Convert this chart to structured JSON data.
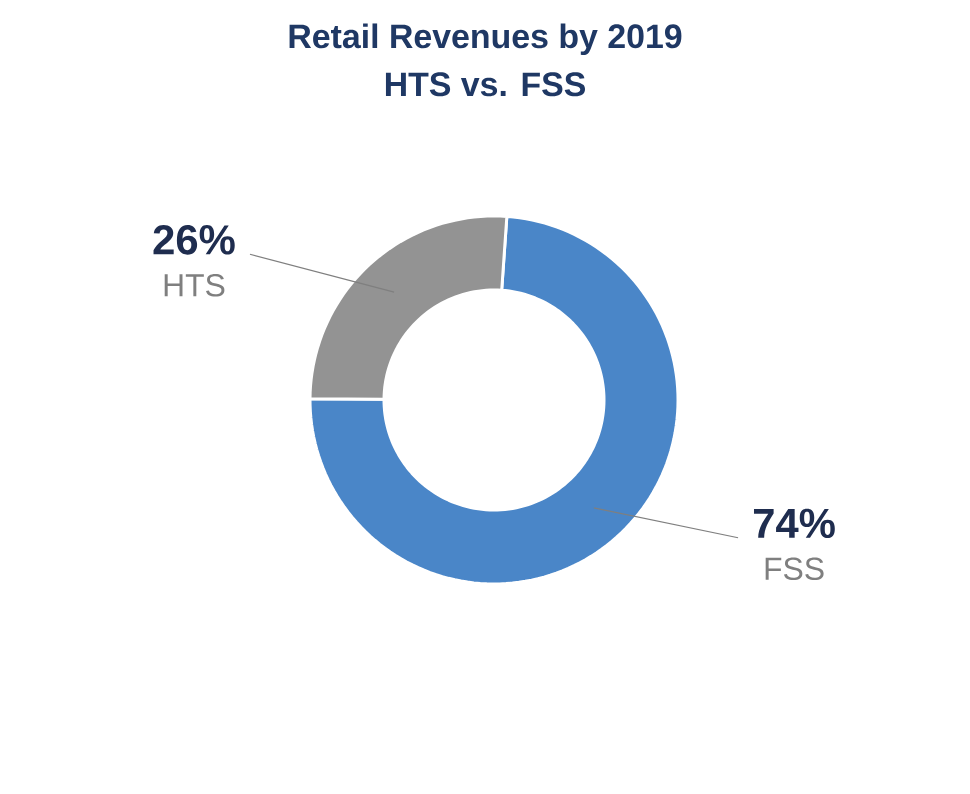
{
  "chart_data": {
    "type": "donut",
    "title": "Retail Revenues by 2019",
    "subtitle": "HTS vs. FSS",
    "categories": [
      "FSS",
      "HTS"
    ],
    "values": [
      74,
      26
    ],
    "colors": [
      "#4a86c8",
      "#939393"
    ],
    "value_labels": [
      "74%",
      "26%"
    ]
  }
}
